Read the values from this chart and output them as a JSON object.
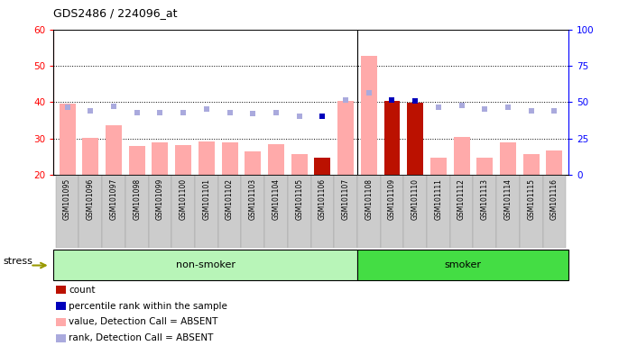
{
  "title": "GDS2486 / 224096_at",
  "samples": [
    "GSM101095",
    "GSM101096",
    "GSM101097",
    "GSM101098",
    "GSM101099",
    "GSM101100",
    "GSM101101",
    "GSM101102",
    "GSM101103",
    "GSM101104",
    "GSM101105",
    "GSM101106",
    "GSM101107",
    "GSM101108",
    "GSM101109",
    "GSM101110",
    "GSM101111",
    "GSM101112",
    "GSM101113",
    "GSM101114",
    "GSM101115",
    "GSM101116"
  ],
  "pink_bars": [
    39.5,
    30.2,
    33.5,
    27.8,
    29.0,
    28.2,
    29.2,
    28.8,
    26.5,
    28.5,
    25.6,
    24.8,
    40.2,
    52.8,
    39.8,
    39.7,
    24.8,
    30.5,
    24.7,
    28.8,
    25.6,
    26.8
  ],
  "red_bars": [
    0,
    0,
    0,
    0,
    0,
    0,
    0,
    0,
    0,
    0,
    0,
    24.8,
    0,
    0,
    40.2,
    39.7,
    0,
    0,
    0,
    0,
    0,
    0
  ],
  "light_blue_dots_left": [
    38.5,
    37.5,
    38.8,
    37.0,
    37.0,
    37.2,
    38.0,
    37.2,
    36.8,
    37.0,
    36.0,
    36.0,
    40.5,
    42.5,
    null,
    null,
    38.5,
    39.0,
    38.0,
    38.5,
    37.5,
    37.5
  ],
  "dark_blue_dots_left": [
    null,
    null,
    null,
    null,
    null,
    null,
    null,
    null,
    null,
    null,
    null,
    36.0,
    null,
    null,
    40.5,
    40.2,
    null,
    null,
    null,
    null,
    null,
    null
  ],
  "non_smoker_count": 13,
  "ylim_left": [
    20,
    60
  ],
  "ylim_right": [
    0,
    100
  ],
  "left_yticks": [
    20,
    30,
    40,
    50,
    60
  ],
  "right_yticks": [
    0,
    25,
    50,
    75,
    100
  ],
  "pink_bar_color": "#ffaaaa",
  "red_bar_color": "#bb1100",
  "light_blue_dot_color": "#aaaadd",
  "dark_blue_dot_color": "#0000bb",
  "non_smoker_color": "#b8f5b8",
  "smoker_color": "#44dd44",
  "xtick_bg": "#cccccc",
  "plot_bg": "#ffffff",
  "grid_dotted_color": "#000000",
  "stress_arrow_color": "#999900",
  "border_color": "#000000"
}
